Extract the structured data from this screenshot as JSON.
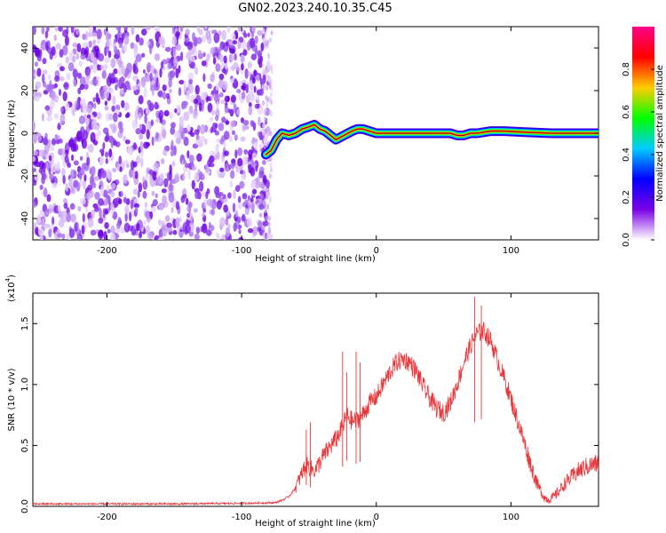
{
  "title": "GN02.2023.240.10.35.C45",
  "chart_data": [
    {
      "type": "heatmap",
      "xlabel": "Height of straight line (km)",
      "ylabel": "Frequency (Hz)",
      "xlim": [
        -255,
        165
      ],
      "ylim": [
        -50,
        50
      ],
      "x_ticks": [
        -200,
        -100,
        0,
        100
      ],
      "y_ticks": [
        -40,
        -20,
        0,
        20,
        40
      ],
      "x_tick_labels": [
        "-200",
        "-100",
        "0",
        "100"
      ],
      "y_tick_labels": [
        "-40",
        "-20",
        "0",
        "20",
        "40"
      ],
      "noise_region_x": [
        -255,
        -80
      ],
      "signal_track": {
        "x": [
          -82,
          -78,
          -74,
          -70,
          -65,
          -60,
          -55,
          -50,
          -46,
          -42,
          -38,
          -34,
          -30,
          -27,
          -24,
          -21,
          -18,
          -14,
          -10,
          0,
          20,
          40,
          55,
          60,
          65,
          70,
          75,
          85,
          95,
          110,
          130,
          150,
          165
        ],
        "freq": [
          -10,
          -8,
          -3,
          0,
          -1,
          0,
          2,
          3,
          4,
          2,
          1,
          -1,
          -3,
          -2,
          -1,
          0,
          1,
          2,
          2,
          0,
          0,
          0,
          0,
          -1,
          -1,
          0,
          0,
          1,
          1,
          0.5,
          0,
          0,
          0
        ]
      },
      "colorbar": {
        "label": "Normalized spectral amplitude",
        "range": [
          0,
          1
        ],
        "ticks": [
          0.0,
          0.2,
          0.4,
          0.6,
          0.8
        ],
        "tick_labels": [
          "0.0",
          "0.2",
          "0.4",
          "0.6",
          "0.8"
        ],
        "colors": [
          "#ffffff",
          "#7a00e6",
          "#0000ff",
          "#00ccff",
          "#00ff00",
          "#ffcc00",
          "#ff0000",
          "#ff0088"
        ]
      }
    },
    {
      "type": "line",
      "xlabel": "Height of straight line (km)",
      "ylabel": "SNR (10 * v/v)",
      "y_scale_label": "(x10",
      "y_scale_exponent": "4",
      "xlim": [
        -255,
        165
      ],
      "ylim": [
        0,
        17500
      ],
      "x_ticks": [
        -200,
        -100,
        0,
        100
      ],
      "y_ticks": [
        0,
        5000,
        10000,
        15000
      ],
      "x_tick_labels": [
        "-200",
        "-100",
        "0",
        "100"
      ],
      "y_tick_labels": [
        "0.0",
        "0.5",
        "1.0",
        "1.5"
      ],
      "series": [
        {
          "color": "#e8383c",
          "x": [
            -255,
            -200,
            -150,
            -100,
            -75,
            -70,
            -65,
            -60,
            -56,
            -52,
            -48,
            -45,
            -40,
            -35,
            -30,
            -25,
            -22,
            -18,
            -15,
            -10,
            -5,
            0,
            5,
            10,
            15,
            20,
            25,
            30,
            35,
            40,
            45,
            50,
            55,
            60,
            65,
            70,
            75,
            80,
            85,
            90,
            95,
            100,
            105,
            110,
            115,
            120,
            125,
            128,
            132,
            136,
            140,
            145,
            150,
            155,
            160,
            165
          ],
          "y": [
            200,
            200,
            200,
            250,
            300,
            500,
            800,
            1500,
            2500,
            3500,
            3000,
            3000,
            4000,
            4800,
            5500,
            6500,
            7500,
            7000,
            7000,
            7500,
            8500,
            9000,
            10000,
            11000,
            11800,
            12100,
            11800,
            11000,
            9800,
            8800,
            8000,
            7700,
            8500,
            10000,
            11800,
            13200,
            14200,
            14400,
            13600,
            12000,
            10500,
            8800,
            7000,
            5200,
            3300,
            1700,
            700,
            550,
            800,
            1300,
            1900,
            2400,
            2900,
            3200,
            3400,
            3500
          ]
        }
      ],
      "noise_amplitude": 800,
      "spikes": [
        {
          "x": -52,
          "y": 6300
        },
        {
          "x": -49,
          "y": 6900
        },
        {
          "x": -25,
          "y": 12700
        },
        {
          "x": -22,
          "y": 11000
        },
        {
          "x": -15,
          "y": 12700
        },
        {
          "x": -12,
          "y": 11800
        },
        {
          "x": 73,
          "y": 17200
        },
        {
          "x": 78,
          "y": 16500
        }
      ]
    }
  ]
}
